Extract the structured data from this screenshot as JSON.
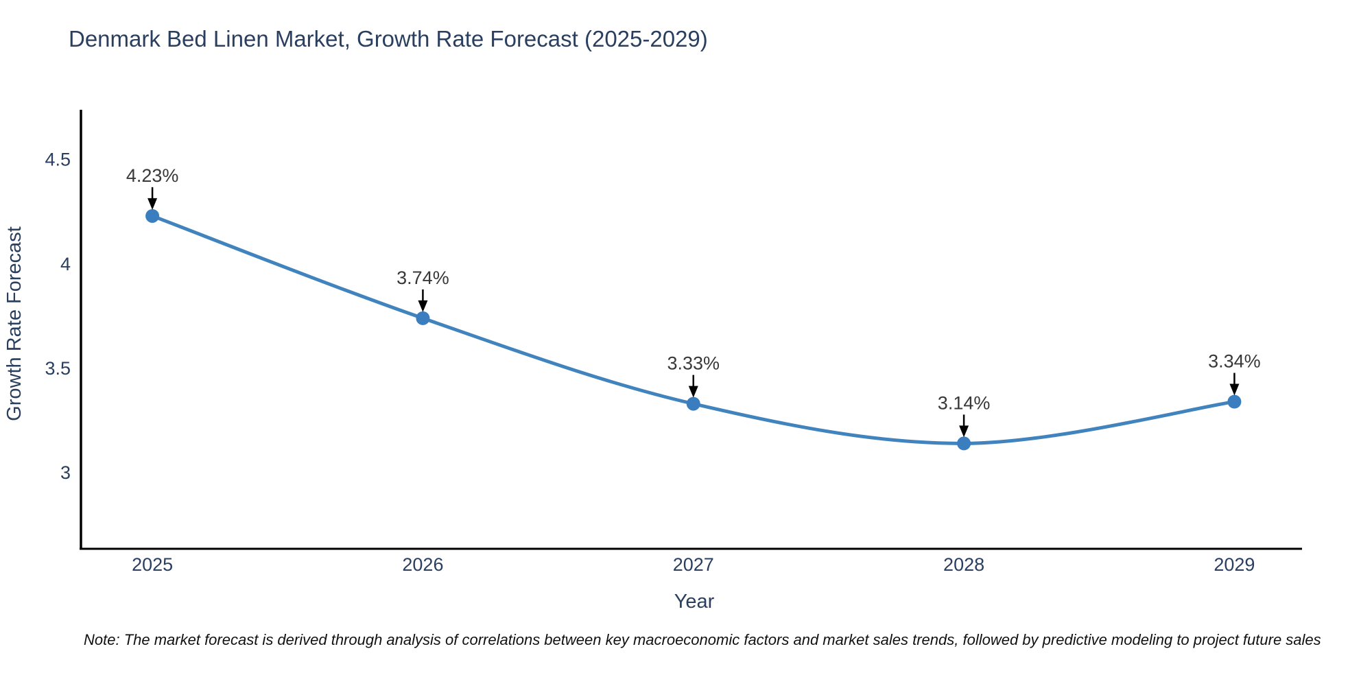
{
  "page": {
    "background": "#ffffff"
  },
  "chart_data": {
    "type": "line",
    "title": "Denmark Bed Linen Market, Growth Rate Forecast (2025-2029)",
    "xlabel": "Year",
    "ylabel": "Growth Rate Forecast",
    "x": [
      2025,
      2026,
      2027,
      2028,
      2029
    ],
    "y": [
      4.23,
      3.74,
      3.33,
      3.14,
      3.34
    ],
    "point_labels": [
      "4.23%",
      "3.74%",
      "3.33%",
      "3.14%",
      "3.34%"
    ],
    "xticks": [
      2025,
      2026,
      2027,
      2028,
      2029
    ],
    "yticks": [
      3,
      3.5,
      4,
      4.5
    ],
    "xlim": [
      2024.736,
      2029.25
    ],
    "ylim": [
      2.635,
      4.739
    ],
    "line_shape": "spline",
    "grid": false,
    "legend_position": "none",
    "colors": {
      "line": "#4184bd",
      "marker": "#3a7ebf",
      "spine": "#000000",
      "arrow": "#000000",
      "title_text": "#2a3f5f",
      "axis_text": "#2a3f5f",
      "annotation_text": "#383838"
    },
    "note": "Note: The market forecast is derived through analysis of correlations between key macroeconomic factors and market sales trends, followed by predictive modeling to project future sales"
  }
}
